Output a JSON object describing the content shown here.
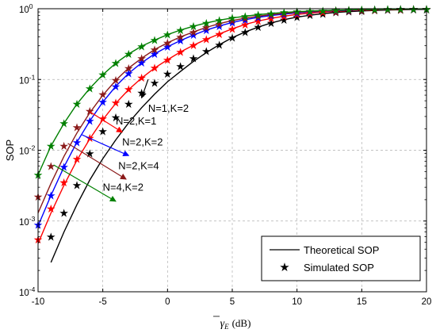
{
  "chart_data": {
    "type": "line",
    "xlabel_main": "γ",
    "xlabel_sub": "E",
    "xlabel_unit": "(dB)",
    "ylabel": "SOP",
    "xlim": [
      -10,
      20
    ],
    "ylim_log10": [
      -4,
      0
    ],
    "y_scale": "log",
    "grid": true,
    "x_ticks": [
      "-10",
      "-5",
      "0",
      "5",
      "10",
      "15",
      "20"
    ],
    "y_ticks": [
      {
        "base": "10",
        "exp": "0"
      },
      {
        "base": "10",
        "exp": "-1"
      },
      {
        "base": "10",
        "exp": "-2"
      },
      {
        "base": "10",
        "exp": "-3"
      },
      {
        "base": "10",
        "exp": "-4"
      }
    ],
    "x_tick_values": [
      -10,
      -5,
      0,
      5,
      10,
      15,
      20
    ],
    "y_tick_values_log10": [
      0,
      -1,
      -2,
      -3,
      -4
    ],
    "legend": {
      "position": "bottom-right",
      "theoretical_label": "Theoretical SOP",
      "simulated_label": "Simulated SOP"
    },
    "series": [
      {
        "name": "N=1,K=2",
        "color": "#000000",
        "x": [
          -9,
          -8,
          -7,
          -6,
          -5,
          -4,
          -3,
          -2,
          -1,
          0,
          1,
          2,
          3,
          4,
          5,
          6,
          7,
          8,
          9,
          10,
          11,
          12,
          13,
          14,
          15,
          16,
          17,
          18,
          19,
          20
        ],
        "y": [
          0.00026,
          0.0007,
          0.0017,
          0.0038,
          0.0076,
          0.014,
          0.0245,
          0.04,
          0.062,
          0.093,
          0.13,
          0.18,
          0.24,
          0.31,
          0.39,
          0.47,
          0.55,
          0.63,
          0.7,
          0.76,
          0.81,
          0.85,
          0.885,
          0.91,
          0.93,
          0.945,
          0.957,
          0.966,
          0.973,
          0.978
        ],
        "sim_x": [
          -9,
          -8,
          -7,
          -6,
          -5,
          -4,
          -3,
          -2,
          -1,
          0,
          1,
          2,
          3,
          4,
          5,
          6,
          7,
          8,
          9,
          10,
          11,
          12,
          13,
          14,
          15,
          16,
          17,
          18,
          19,
          20
        ],
        "sim_y": [
          0.0006,
          0.0013,
          0.0032,
          0.009,
          0.0185,
          0.029,
          0.045,
          0.065,
          0.09,
          0.12,
          0.155,
          0.2,
          0.25,
          0.31,
          0.39,
          0.47,
          0.55,
          0.63,
          0.7,
          0.76,
          0.81,
          0.85,
          0.885,
          0.91,
          0.93,
          0.945,
          0.957,
          0.966,
          0.973,
          0.978
        ]
      },
      {
        "name": "N=2,K=1",
        "color": "#ff0000",
        "x": [
          -10,
          -9,
          -8,
          -7,
          -6,
          -5,
          -4,
          -3,
          -2,
          -1,
          0,
          1,
          2,
          3,
          4,
          5,
          6,
          7,
          8,
          9,
          10,
          11,
          12,
          13,
          14,
          15,
          16,
          17,
          18,
          19,
          20
        ],
        "y": [
          0.00048,
          0.0013,
          0.0032,
          0.0072,
          0.0145,
          0.027,
          0.046,
          0.072,
          0.105,
          0.145,
          0.19,
          0.245,
          0.305,
          0.37,
          0.44,
          0.52,
          0.6,
          0.67,
          0.73,
          0.785,
          0.83,
          0.865,
          0.895,
          0.918,
          0.936,
          0.95,
          0.961,
          0.969,
          0.976,
          0.981,
          0.985
        ],
        "sim_x": [
          -10,
          -9,
          -8,
          -7,
          -6,
          -5,
          -4,
          -3,
          -2,
          -1,
          0,
          1,
          2,
          3,
          4,
          5,
          6,
          7,
          8,
          9,
          10,
          11,
          12,
          13,
          14,
          15,
          16,
          17,
          18,
          19,
          20
        ],
        "sim_y": [
          0.00055,
          0.0015,
          0.0035,
          0.0075,
          0.015,
          0.028,
          0.047,
          0.073,
          0.106,
          0.146,
          0.19,
          0.245,
          0.305,
          0.37,
          0.44,
          0.52,
          0.6,
          0.67,
          0.73,
          0.785,
          0.83,
          0.865,
          0.895,
          0.918,
          0.936,
          0.95,
          0.961,
          0.969,
          0.976,
          0.981,
          0.985
        ]
      },
      {
        "name": "N=2,K=2",
        "color": "#0000ff",
        "x": [
          -10,
          -9,
          -8,
          -7,
          -6,
          -5,
          -4,
          -3,
          -2,
          -1,
          0,
          1,
          2,
          3,
          4,
          5,
          6,
          7,
          8,
          9,
          10,
          11,
          12,
          13,
          14,
          15,
          16,
          17,
          18,
          19,
          20
        ],
        "y": [
          0.00085,
          0.0023,
          0.0058,
          0.013,
          0.026,
          0.048,
          0.08,
          0.122,
          0.172,
          0.23,
          0.29,
          0.355,
          0.425,
          0.5,
          0.57,
          0.64,
          0.7,
          0.755,
          0.8,
          0.84,
          0.872,
          0.898,
          0.92,
          0.937,
          0.95,
          0.961,
          0.969,
          0.976,
          0.981,
          0.985,
          0.988
        ],
        "sim_x": [
          -10,
          -9,
          -8,
          -7,
          -6,
          -5,
          -4,
          -3,
          -2,
          -1,
          0,
          1,
          2,
          3,
          4,
          5,
          6,
          7,
          8,
          9,
          10,
          11,
          12,
          13,
          14,
          15,
          16,
          17,
          18,
          19,
          20
        ],
        "sim_y": [
          0.00088,
          0.0023,
          0.0058,
          0.013,
          0.026,
          0.048,
          0.08,
          0.122,
          0.172,
          0.23,
          0.29,
          0.355,
          0.425,
          0.5,
          0.57,
          0.64,
          0.7,
          0.755,
          0.8,
          0.84,
          0.872,
          0.898,
          0.92,
          0.937,
          0.95,
          0.961,
          0.969,
          0.976,
          0.981,
          0.985,
          0.988
        ]
      },
      {
        "name": "N=2,K=4",
        "color": "#8b1a1a",
        "x": [
          -10,
          -9,
          -8,
          -7,
          -6,
          -5,
          -4,
          -3,
          -2,
          -1,
          0,
          1,
          2,
          3,
          4,
          5,
          6,
          7,
          8,
          9,
          10,
          11,
          12,
          13,
          14,
          15,
          16,
          17,
          18,
          19,
          20
        ],
        "y": [
          0.0013,
          0.0034,
          0.0082,
          0.0175,
          0.034,
          0.06,
          0.097,
          0.145,
          0.2,
          0.265,
          0.33,
          0.4,
          0.47,
          0.545,
          0.615,
          0.68,
          0.735,
          0.785,
          0.825,
          0.86,
          0.888,
          0.911,
          0.93,
          0.945,
          0.957,
          0.966,
          0.973,
          0.979,
          0.983,
          0.987,
          0.99
        ],
        "sim_x": [
          -10,
          -9,
          -8,
          -7,
          -6,
          -5,
          -4,
          -3,
          -2,
          -1,
          0,
          1,
          2,
          3,
          4,
          5,
          6,
          7,
          8,
          9,
          10,
          11,
          12,
          13,
          14,
          15,
          16,
          17,
          18,
          19,
          20
        ],
        "sim_y": [
          0.0022,
          0.006,
          0.0115,
          0.021,
          0.036,
          0.062,
          0.098,
          0.145,
          0.2,
          0.265,
          0.33,
          0.4,
          0.47,
          0.545,
          0.615,
          0.68,
          0.735,
          0.785,
          0.825,
          0.86,
          0.888,
          0.911,
          0.93,
          0.945,
          0.957,
          0.966,
          0.973,
          0.979,
          0.983,
          0.987,
          0.99
        ]
      },
      {
        "name": "N=4,K=2",
        "color": "#008000",
        "x": [
          -10,
          -9,
          -8,
          -7,
          -6,
          -5,
          -4,
          -3,
          -2,
          -1,
          0,
          1,
          2,
          3,
          4,
          5,
          6,
          7,
          8,
          9,
          10,
          11,
          12,
          13,
          14,
          15,
          16,
          17,
          18,
          19,
          20
        ],
        "y": [
          0.0045,
          0.0115,
          0.024,
          0.045,
          0.075,
          0.117,
          0.17,
          0.23,
          0.295,
          0.36,
          0.43,
          0.5,
          0.565,
          0.63,
          0.69,
          0.74,
          0.785,
          0.825,
          0.858,
          0.885,
          0.908,
          0.927,
          0.942,
          0.954,
          0.964,
          0.972,
          0.978,
          0.983,
          0.987,
          0.99,
          0.992
        ],
        "sim_x": [
          -10,
          -9,
          -8,
          -7,
          -6,
          -5,
          -4,
          -3,
          -2,
          -1,
          0,
          1,
          2,
          3,
          4,
          5,
          6,
          7,
          8,
          9,
          10,
          11,
          12,
          13,
          14,
          15,
          16,
          17,
          18,
          19,
          20
        ],
        "sim_y": [
          0.0045,
          0.0115,
          0.024,
          0.045,
          0.075,
          0.117,
          0.17,
          0.23,
          0.295,
          0.36,
          0.43,
          0.5,
          0.565,
          0.63,
          0.69,
          0.74,
          0.785,
          0.825,
          0.858,
          0.885,
          0.908,
          0.927,
          0.942,
          0.954,
          0.964,
          0.972,
          0.978,
          0.983,
          0.987,
          0.99,
          0.992
        ]
      }
    ],
    "annotations": [
      {
        "text": "N=1,K=2",
        "series": "N=1,K=2",
        "color": "#000000",
        "arrow_from": [
          -2,
          0.055
        ],
        "arrow_to": [
          -1.5,
          0.1
        ],
        "label_at": [
          -1.5,
          0.035
        ]
      },
      {
        "text": "N=2,K=1",
        "series": "N=2,K=1",
        "color": "#ff0000",
        "arrow_from": [
          -3.5,
          0.018
        ],
        "arrow_to": [
          -6,
          0.035
        ],
        "label_at": [
          -4,
          0.023
        ]
      },
      {
        "text": "N=2,K=2",
        "series": "N=2,K=2",
        "color": "#0000ff",
        "arrow_from": [
          -3,
          0.0084
        ],
        "arrow_to": [
          -6.6,
          0.0165
        ],
        "label_at": [
          -3.5,
          0.0117
        ]
      },
      {
        "text": "N=2,K=4",
        "series": "N=2,K=4",
        "color": "#8b1a1a",
        "arrow_from": [
          -3.2,
          0.0039
        ],
        "arrow_to": [
          -7.7,
          0.0125
        ],
        "label_at": [
          -3.8,
          0.0054
        ]
      },
      {
        "text": "N=4,K=2",
        "series": "N=4,K=2",
        "color": "#008000",
        "arrow_from": [
          -4,
          0.0019
        ],
        "arrow_to": [
          -8.8,
          0.0062
        ],
        "label_at": [
          -5,
          0.0027
        ]
      }
    ]
  }
}
